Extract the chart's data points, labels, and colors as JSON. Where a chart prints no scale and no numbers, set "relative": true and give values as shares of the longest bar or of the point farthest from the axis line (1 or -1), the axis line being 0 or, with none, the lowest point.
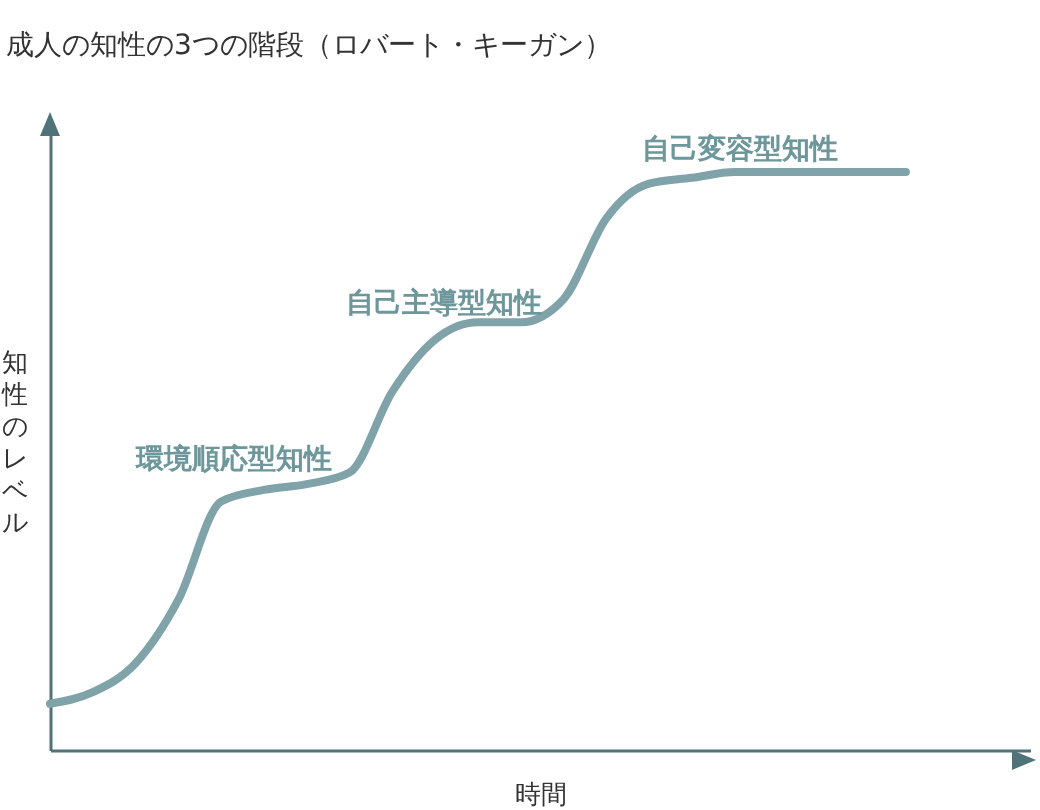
{
  "chart_data": {
    "type": "line",
    "title": "成人の知性の3つの階段（ロバート・キーガン）",
    "xlabel": "時間",
    "ylabel": "知性のレベル",
    "relative": true,
    "grid": false,
    "marker": "none",
    "line_style": "solid",
    "categories": [
      null,
      null,
      null,
      null,
      null,
      null,
      null,
      null,
      null,
      null,
      null,
      null,
      null,
      null,
      null,
      null,
      null,
      null,
      null,
      null,
      null
    ],
    "series": [
      {
        "color": "#7fa3a8",
        "values": [
          0.08,
          0.1,
          0.15,
          0.26,
          0.43,
          0.45,
          0.46,
          0.48,
          0.62,
          0.71,
          0.74,
          0.74,
          0.78,
          0.92,
          0.98,
          0.99,
          1.0,
          1.0,
          1.0,
          1.0,
          1.0
        ]
      }
    ],
    "annotations": [
      "環境順応型知性",
      "自己主導型知性",
      "自己変容型知性"
    ]
  }
}
